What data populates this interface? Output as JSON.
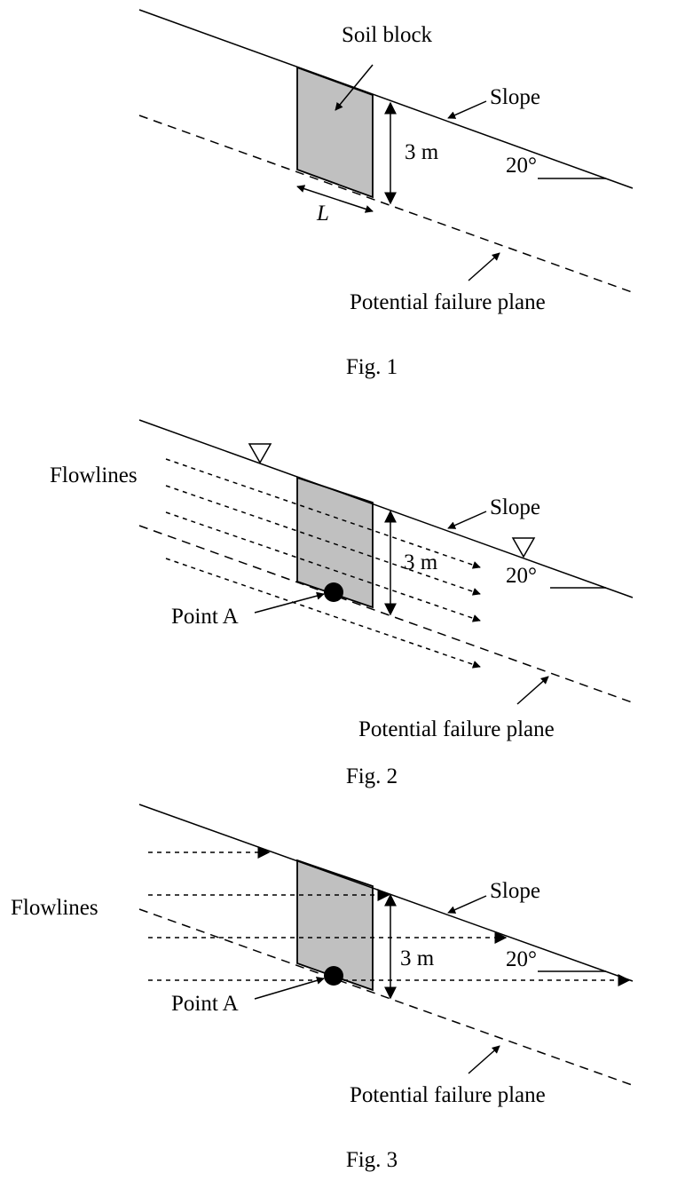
{
  "figures": [
    {
      "caption": "Fig. 1",
      "labels": {
        "soil_block": "Soil block",
        "slope": "Slope",
        "height": "3 m",
        "angle": "20°",
        "length": "L",
        "failure_plane": "Potential failure plane"
      }
    },
    {
      "caption": "Fig. 2",
      "labels": {
        "flowlines": "Flowlines",
        "slope": "Slope",
        "height": "3 m",
        "angle": "20°",
        "point": "Point A",
        "failure_plane": "Potential failure plane"
      }
    },
    {
      "caption": "Fig. 3",
      "labels": {
        "flowlines": "Flowlines",
        "slope": "Slope",
        "height": "3 m",
        "angle": "20°",
        "point": "Point A",
        "failure_plane": "Potential failure plane"
      }
    }
  ]
}
